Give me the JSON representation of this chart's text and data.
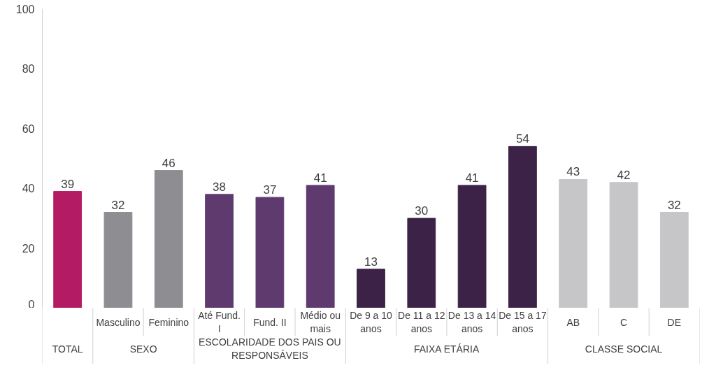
{
  "chart_data": {
    "type": "bar",
    "categories": [
      null,
      "Masculino",
      "Feminino",
      "Até Fund. I",
      "Fund. II",
      "Médio ou mais",
      "De 9 a 10 anos",
      "De 11 a 12 anos",
      "De 13 a 14 anos",
      "De 15 a 17 anos",
      "AB",
      "C",
      "DE"
    ],
    "values": [
      39,
      32,
      46,
      38,
      37,
      41,
      13,
      30,
      41,
      54,
      43,
      42,
      32
    ],
    "colors": [
      "#b31b64",
      "#8e8e92",
      "#8e8e92",
      "#5e3a6e",
      "#5e3a6e",
      "#5e3a6e",
      "#3d2248",
      "#3d2248",
      "#3d2248",
      "#3d2248",
      "#c6c6c8",
      "#c6c6c8",
      "#c6c6c8"
    ],
    "annotations": [
      "TOTAL",
      "SEXO",
      "ESCOLARIDADE DOS PAIS OU RESPONSÁVEIS",
      "FAIXA ETÁRIA",
      "CLASSE SOCIAL"
    ],
    "ylim": [
      0,
      100
    ],
    "yticks": [
      0,
      20,
      40,
      60,
      80,
      100
    ],
    "data_labels": true
  }
}
